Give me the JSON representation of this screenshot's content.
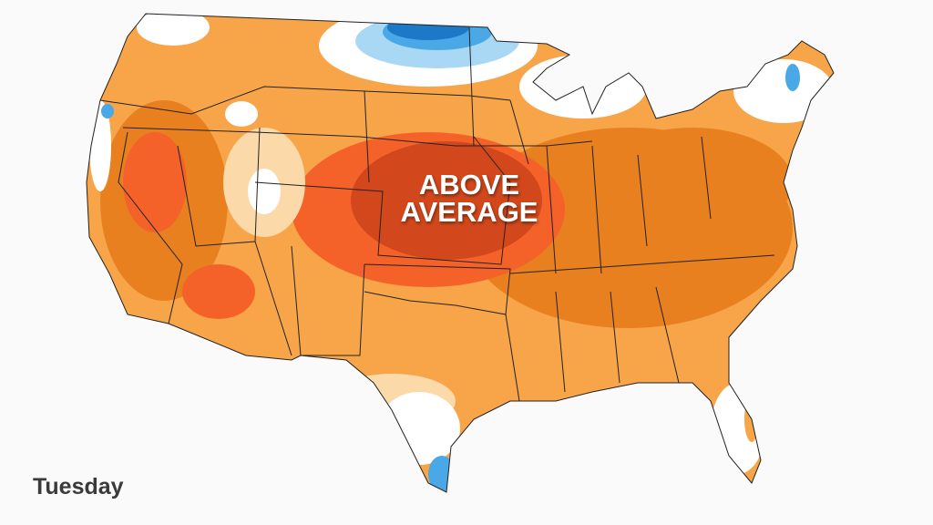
{
  "map": {
    "region": "Contiguous United States",
    "annotation": "ABOVE\nAVERAGE",
    "annotation_lines": [
      "ABOVE",
      "AVERAGE"
    ],
    "day_label": "Tuesday",
    "colors": {
      "background": "#fafafa",
      "slightly_above": "#fbd9a8",
      "above": "#f7a548",
      "well_above": "#e8801f",
      "much_above": "#f4622a",
      "extreme_above": "#d2481c",
      "slightly_below": "#a9d8f5",
      "below": "#4aa8e6",
      "well_below": "#1e78c8",
      "borders": "#222222"
    }
  }
}
